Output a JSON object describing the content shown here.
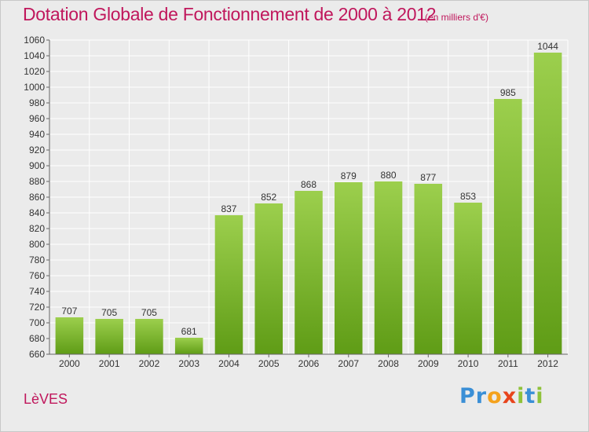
{
  "chart_data": {
    "type": "bar",
    "title": "Dotation Globale de Fonctionnement de 2000 à 2012",
    "subtitle": "(en milliers d'€)",
    "categories": [
      "2000",
      "2001",
      "2002",
      "2003",
      "2004",
      "2005",
      "2006",
      "2007",
      "2008",
      "2009",
      "2010",
      "2011",
      "2012"
    ],
    "values": [
      707,
      705,
      705,
      681,
      837,
      852,
      868,
      879,
      880,
      877,
      853,
      985,
      1044
    ],
    "ylim": [
      660,
      1060
    ],
    "yticks": [
      660,
      680,
      700,
      720,
      740,
      760,
      780,
      800,
      820,
      840,
      860,
      880,
      900,
      920,
      940,
      960,
      980,
      1000,
      1020,
      1040,
      1060
    ],
    "grid": true,
    "xlabel": "",
    "ylabel": "",
    "data_labels": true
  },
  "commune": "LèVES",
  "logo": {
    "text": "Proxiti",
    "letter_colors": [
      "#3a8fd6",
      "#3a8fd6",
      "#f4a21d",
      "#e8441c",
      "#8fc23a",
      "#3a8fd6",
      "#8fc23a"
    ]
  },
  "colors": {
    "title": "#c0175c",
    "bar_top": "#9ccf4d",
    "bar_bottom": "#5f9c16",
    "grid": "#ffffff",
    "background": "#ebebeb"
  }
}
